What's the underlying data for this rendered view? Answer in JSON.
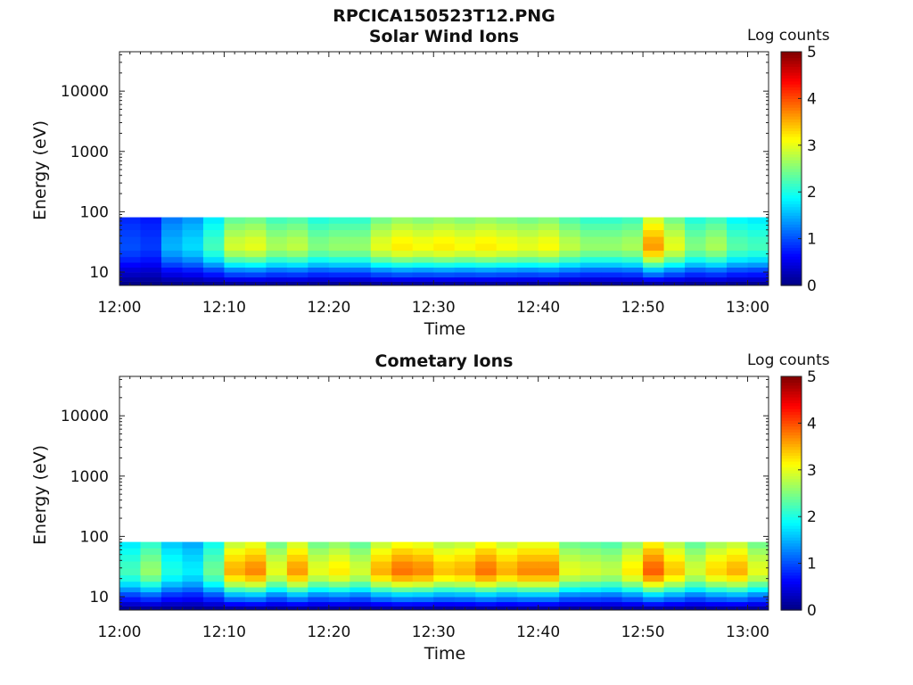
{
  "title": "RPCICA150523T12.PNG",
  "colorbar": {
    "label": "Log counts",
    "range": [
      0,
      5
    ],
    "ticks": [
      "0",
      "1",
      "2",
      "3",
      "4",
      "5"
    ],
    "colormap": "jet"
  },
  "chart_data": [
    {
      "type": "heatmap",
      "title": "Solar Wind Ions",
      "xlabel": "Time",
      "ylabel": "Energy (eV)",
      "yscale": "log",
      "ylim": [
        6,
        45000
      ],
      "xlim": [
        "12:00",
        "13:02"
      ],
      "xticks": [
        "12:00",
        "12:10",
        "12:20",
        "12:30",
        "12:40",
        "12:50",
        "13:00"
      ],
      "yticks": [
        "10",
        "100",
        "1000",
        "10000"
      ],
      "energy_bins": [
        6.5,
        7.5,
        9,
        11,
        13,
        16,
        20,
        26,
        34,
        44,
        57,
        72
      ],
      "time_bins_min": [
        0,
        2,
        4,
        6,
        8,
        10,
        12,
        14,
        16,
        18,
        20,
        22,
        24,
        26,
        28,
        30,
        32,
        34,
        36,
        38,
        40,
        42,
        44,
        46,
        48,
        50,
        52,
        54,
        56,
        58,
        60
      ],
      "peak_log_counts": [
        1.0,
        0.9,
        1.5,
        1.7,
        2.2,
        2.9,
        3.0,
        2.7,
        2.8,
        2.5,
        2.6,
        2.6,
        3.0,
        3.2,
        3.1,
        3.2,
        3.1,
        3.2,
        3.1,
        3.0,
        3.1,
        2.8,
        2.6,
        2.6,
        2.7,
        3.6,
        3.0,
        2.5,
        2.7,
        2.3,
        2.2
      ]
    },
    {
      "type": "heatmap",
      "title": "Cometary Ions",
      "xlabel": "Time",
      "ylabel": "Energy (eV)",
      "yscale": "log",
      "ylim": [
        6,
        45000
      ],
      "xlim": [
        "12:00",
        "13:02"
      ],
      "xticks": [
        "12:00",
        "12:10",
        "12:20",
        "12:30",
        "12:40",
        "12:50",
        "13:00"
      ],
      "yticks": [
        "10",
        "100",
        "1000",
        "10000"
      ],
      "energy_bins": [
        6.5,
        7.5,
        9,
        11,
        13,
        16,
        20,
        26,
        34,
        44,
        57,
        72
      ],
      "time_bins_min": [
        0,
        2,
        4,
        6,
        8,
        10,
        12,
        14,
        16,
        18,
        20,
        22,
        24,
        26,
        28,
        30,
        32,
        34,
        36,
        38,
        40,
        42,
        44,
        46,
        48,
        50,
        52,
        54,
        56,
        58,
        60
      ],
      "peak_log_counts": [
        2.2,
        2.6,
        2.0,
        1.8,
        2.4,
        3.5,
        3.7,
        3.0,
        3.6,
        3.0,
        3.2,
        2.9,
        3.5,
        3.8,
        3.7,
        3.4,
        3.5,
        3.8,
        3.5,
        3.7,
        3.7,
        3.0,
        2.9,
        2.8,
        3.2,
        3.9,
        3.4,
        2.9,
        3.3,
        3.5,
        3.0
      ]
    }
  ]
}
